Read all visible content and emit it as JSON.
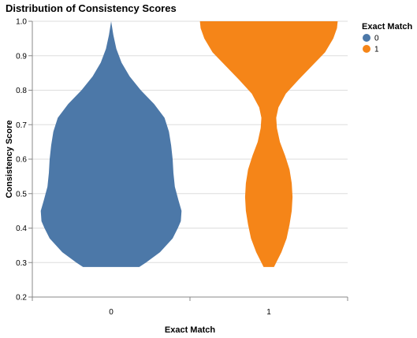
{
  "chart_data": {
    "type": "violin",
    "title": "Distribution of Consistency Scores",
    "xlabel": "Exact Match",
    "ylabel": "Consistency Score",
    "categories": [
      "0",
      "1"
    ],
    "ylim": [
      0.2,
      1.0
    ],
    "yticks": [
      "0.2",
      "0.3",
      "0.4",
      "0.5",
      "0.6",
      "0.7",
      "0.8",
      "0.9",
      "1.0"
    ],
    "grid": true,
    "legend": {
      "title": "Exact Match",
      "entries": [
        "0",
        "1"
      ],
      "placement": "top-right"
    },
    "colors": {
      "0": "#4c78a8",
      "1": "#f58518"
    },
    "series": [
      {
        "name": "0",
        "density": [
          [
            0.287,
            0.38
          ],
          [
            0.3,
            0.47
          ],
          [
            0.33,
            0.66
          ],
          [
            0.37,
            0.83
          ],
          [
            0.4,
            0.9
          ],
          [
            0.42,
            0.94
          ],
          [
            0.45,
            0.95
          ],
          [
            0.48,
            0.91
          ],
          [
            0.52,
            0.86
          ],
          [
            0.56,
            0.84
          ],
          [
            0.6,
            0.83
          ],
          [
            0.64,
            0.81
          ],
          [
            0.68,
            0.78
          ],
          [
            0.72,
            0.72
          ],
          [
            0.76,
            0.58
          ],
          [
            0.8,
            0.4
          ],
          [
            0.84,
            0.25
          ],
          [
            0.88,
            0.14
          ],
          [
            0.92,
            0.07
          ],
          [
            0.96,
            0.03
          ],
          [
            1.0,
            0.0
          ]
        ]
      },
      {
        "name": "1",
        "density": [
          [
            0.287,
            0.07
          ],
          [
            0.3,
            0.1
          ],
          [
            0.33,
            0.17
          ],
          [
            0.37,
            0.24
          ],
          [
            0.41,
            0.28
          ],
          [
            0.45,
            0.31
          ],
          [
            0.49,
            0.32
          ],
          [
            0.53,
            0.31
          ],
          [
            0.57,
            0.28
          ],
          [
            0.61,
            0.22
          ],
          [
            0.65,
            0.15
          ],
          [
            0.69,
            0.11
          ],
          [
            0.72,
            0.1
          ],
          [
            0.75,
            0.13
          ],
          [
            0.79,
            0.23
          ],
          [
            0.83,
            0.4
          ],
          [
            0.87,
            0.58
          ],
          [
            0.91,
            0.76
          ],
          [
            0.95,
            0.87
          ],
          [
            0.98,
            0.92
          ],
          [
            1.0,
            0.93
          ]
        ]
      }
    ]
  }
}
